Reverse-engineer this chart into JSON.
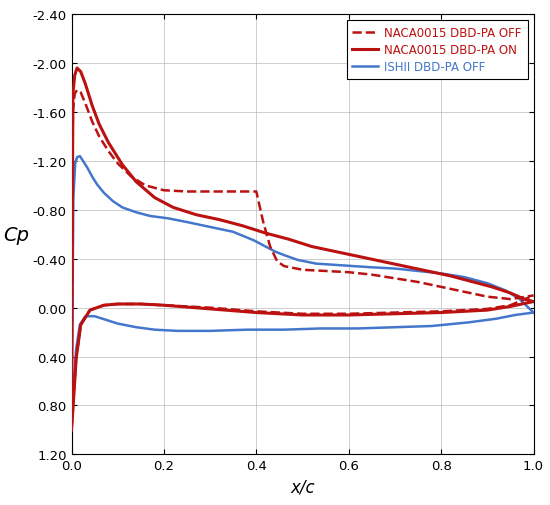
{
  "xlabel": "x/c",
  "ylabel": "Cp",
  "xlim": [
    0.0,
    1.0
  ],
  "ylim": [
    1.2,
    -2.4
  ],
  "xticks": [
    0.0,
    0.2,
    0.4,
    0.6,
    0.8,
    1.0
  ],
  "yticks": [
    -2.4,
    -2.0,
    -1.6,
    -1.2,
    -0.8,
    -0.4,
    0.0,
    0.4,
    0.8,
    1.2
  ],
  "grid_color": "#b0b0b0",
  "background_color": "#ffffff",
  "legend": [
    {
      "label": "NACA0015 DBD-PA OFF",
      "color": "#bb1111",
      "linestyle": "dashed",
      "linewidth": 1.8
    },
    {
      "label": "NACA0015 DBD-PA ON",
      "color": "#bb1111",
      "linestyle": "solid",
      "linewidth": 2.2
    },
    {
      "label": "ISHII DBD-PA OFF",
      "color": "#4477cc",
      "linestyle": "solid",
      "linewidth": 1.8
    }
  ],
  "naca_off_upper_x": [
    0.0,
    0.003,
    0.007,
    0.012,
    0.02,
    0.03,
    0.045,
    0.06,
    0.08,
    0.1,
    0.13,
    0.16,
    0.2,
    0.25,
    0.295,
    0.32,
    0.35,
    0.38,
    0.4,
    0.415,
    0.43,
    0.445,
    0.46,
    0.5,
    0.55,
    0.6,
    0.65,
    0.7,
    0.75,
    0.8,
    0.85,
    0.9,
    0.95,
    1.0
  ],
  "naca_off_upper_y": [
    1.0,
    -1.6,
    -1.75,
    -1.78,
    -1.76,
    -1.67,
    -1.52,
    -1.4,
    -1.28,
    -1.18,
    -1.07,
    -1.0,
    -0.96,
    -0.95,
    -0.95,
    -0.95,
    -0.95,
    -0.95,
    -0.95,
    -0.7,
    -0.5,
    -0.38,
    -0.34,
    -0.31,
    -0.3,
    -0.29,
    -0.27,
    -0.24,
    -0.21,
    -0.17,
    -0.13,
    -0.09,
    -0.07,
    -0.1
  ],
  "naca_off_lower_x": [
    0.0,
    0.005,
    0.01,
    0.02,
    0.04,
    0.07,
    0.1,
    0.15,
    0.2,
    0.3,
    0.4,
    0.5,
    0.6,
    0.7,
    0.8,
    0.9,
    0.95,
    1.0
  ],
  "naca_off_lower_y": [
    1.0,
    0.72,
    0.42,
    0.14,
    0.02,
    -0.02,
    -0.03,
    -0.03,
    -0.02,
    0.0,
    0.03,
    0.05,
    0.05,
    0.04,
    0.03,
    0.01,
    -0.02,
    -0.1
  ],
  "naca_on_upper_x": [
    0.0,
    0.003,
    0.007,
    0.012,
    0.02,
    0.03,
    0.045,
    0.06,
    0.08,
    0.11,
    0.14,
    0.18,
    0.22,
    0.27,
    0.32,
    0.37,
    0.42,
    0.47,
    0.52,
    0.57,
    0.62,
    0.67,
    0.72,
    0.77,
    0.82,
    0.87,
    0.91,
    0.95,
    0.98,
    1.0
  ],
  "naca_on_upper_y": [
    1.0,
    -1.75,
    -1.9,
    -1.96,
    -1.93,
    -1.83,
    -1.65,
    -1.5,
    -1.35,
    -1.17,
    -1.03,
    -0.9,
    -0.82,
    -0.76,
    -0.72,
    -0.67,
    -0.61,
    -0.56,
    -0.5,
    -0.46,
    -0.42,
    -0.38,
    -0.34,
    -0.3,
    -0.26,
    -0.21,
    -0.17,
    -0.12,
    -0.07,
    -0.05
  ],
  "naca_on_lower_x": [
    0.0,
    0.005,
    0.01,
    0.02,
    0.04,
    0.07,
    0.1,
    0.15,
    0.2,
    0.3,
    0.4,
    0.5,
    0.6,
    0.7,
    0.8,
    0.9,
    0.95,
    1.0
  ],
  "naca_on_lower_y": [
    1.0,
    0.72,
    0.42,
    0.14,
    0.02,
    -0.02,
    -0.03,
    -0.03,
    -0.02,
    0.01,
    0.04,
    0.06,
    0.06,
    0.05,
    0.04,
    0.02,
    -0.01,
    -0.05
  ],
  "ishii_upper_x": [
    0.0,
    0.004,
    0.008,
    0.012,
    0.018,
    0.025,
    0.035,
    0.045,
    0.055,
    0.07,
    0.09,
    0.11,
    0.14,
    0.17,
    0.21,
    0.25,
    0.3,
    0.35,
    0.395,
    0.42,
    0.44,
    0.46,
    0.49,
    0.53,
    0.57,
    0.61,
    0.65,
    0.7,
    0.75,
    0.8,
    0.85,
    0.9,
    0.94,
    0.97,
    1.0
  ],
  "ishii_upper_y": [
    1.0,
    -0.9,
    -1.18,
    -1.23,
    -1.24,
    -1.2,
    -1.14,
    -1.07,
    -1.01,
    -0.94,
    -0.87,
    -0.82,
    -0.78,
    -0.75,
    -0.73,
    -0.7,
    -0.66,
    -0.62,
    -0.55,
    -0.5,
    -0.46,
    -0.43,
    -0.39,
    -0.36,
    -0.35,
    -0.34,
    -0.33,
    -0.32,
    -0.3,
    -0.28,
    -0.25,
    -0.2,
    -0.14,
    -0.07,
    0.04
  ],
  "ishii_lower_x": [
    0.0,
    0.005,
    0.01,
    0.018,
    0.03,
    0.05,
    0.075,
    0.1,
    0.14,
    0.18,
    0.23,
    0.3,
    0.38,
    0.46,
    0.54,
    0.62,
    0.7,
    0.78,
    0.86,
    0.92,
    0.96,
    1.0
  ],
  "ishii_lower_y": [
    1.0,
    0.6,
    0.34,
    0.14,
    0.07,
    0.07,
    0.1,
    0.13,
    0.16,
    0.18,
    0.19,
    0.19,
    0.18,
    0.18,
    0.17,
    0.17,
    0.16,
    0.15,
    0.12,
    0.09,
    0.06,
    0.04
  ]
}
